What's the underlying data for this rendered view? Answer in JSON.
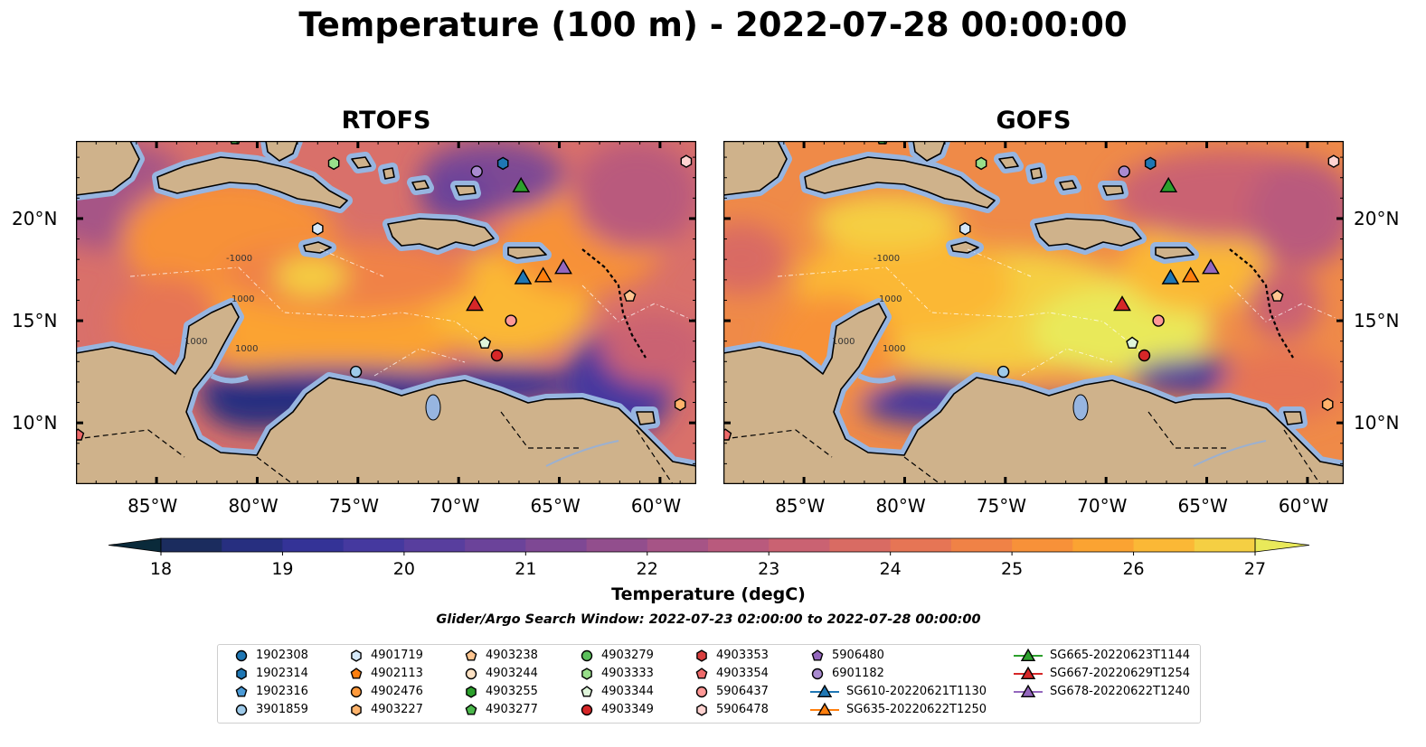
{
  "title": "Temperature (100 m) - 2022-07-28 00:00:00",
  "panels": [
    {
      "title": "RTOFS",
      "palette": "rtofs"
    },
    {
      "title": "GOFS",
      "palette": "gofs"
    }
  ],
  "axes": {
    "lon_ticks": [
      "85°W",
      "80°W",
      "75°W",
      "70°W",
      "65°W",
      "60°W"
    ],
    "lat_ticks": [
      "20°N",
      "15°N",
      "10°N"
    ],
    "bathymetry_labels": [
      "1000",
      "1000",
      "-1000",
      "1000"
    ]
  },
  "colorbar": {
    "label": "Temperature (degC)",
    "ticks": [
      "18",
      "19",
      "20",
      "21",
      "22",
      "23",
      "24",
      "25",
      "26",
      "27"
    ],
    "min": 18,
    "max": 27,
    "step": 0.5,
    "colors": [
      "#0a2a3a",
      "#1b2c5e",
      "#272f80",
      "#343397",
      "#45399f",
      "#583e9e",
      "#6b439a",
      "#7e4894",
      "#924e8d",
      "#a65486",
      "#b95a7d",
      "#ca6272",
      "#d96b63",
      "#e67555",
      "#f08246",
      "#f79139",
      "#fba332",
      "#fbb836",
      "#f5cf43",
      "#e9e95a"
    ]
  },
  "subtitle": "Glider/Argo Search Window: 2022-07-23 02:00:00 to 2022-07-28 00:00:00",
  "legend": {
    "items": [
      {
        "label": "1902308",
        "marker": "circle",
        "color": "#1f77b4"
      },
      {
        "label": "1902314",
        "marker": "hexagon",
        "color": "#1f77b4"
      },
      {
        "label": "1902316",
        "marker": "pentagon",
        "color": "#4a9ad6"
      },
      {
        "label": "3901859",
        "marker": "circle",
        "color": "#9ecae9"
      },
      {
        "label": "4901719",
        "marker": "hexagon",
        "color": "#d5e8f8"
      },
      {
        "label": "4902113",
        "marker": "pentagon",
        "color": "#ff7f0e"
      },
      {
        "label": "4902476",
        "marker": "circle",
        "color": "#ff9a3c"
      },
      {
        "label": "4903227",
        "marker": "hexagon",
        "color": "#ffb36b"
      },
      {
        "label": "4903238",
        "marker": "pentagon",
        "color": "#ffc590"
      },
      {
        "label": "4903244",
        "marker": "circle",
        "color": "#ffe2c4"
      },
      {
        "label": "4903255",
        "marker": "hexagon",
        "color": "#2ca02c"
      },
      {
        "label": "4903277",
        "marker": "pentagon",
        "color": "#4cb84c"
      },
      {
        "label": "4903279",
        "marker": "circle",
        "color": "#5cc05c"
      },
      {
        "label": "4903333",
        "marker": "hexagon",
        "color": "#98df8a"
      },
      {
        "label": "4903344",
        "marker": "pentagon",
        "color": "#dff5da"
      },
      {
        "label": "4903349",
        "marker": "circle",
        "color": "#d62728"
      },
      {
        "label": "4903353",
        "marker": "hexagon",
        "color": "#d93f3f"
      },
      {
        "label": "4903354",
        "marker": "pentagon",
        "color": "#ee6a6a"
      },
      {
        "label": "5906437",
        "marker": "circle",
        "color": "#ff9896"
      },
      {
        "label": "5906478",
        "marker": "hexagon",
        "color": "#ffd3d1"
      },
      {
        "label": "5906480",
        "marker": "pentagon",
        "color": "#9467bd"
      },
      {
        "label": "6901182",
        "marker": "circle",
        "color": "#a98ad0"
      },
      {
        "label": "SG610-20220621T1130",
        "marker": "triangle",
        "color": "#1f77b4"
      },
      {
        "label": "SG635-20220622T1250",
        "marker": "triangle",
        "color": "#ff7f0e"
      },
      {
        "label": "SG665-20220623T1144",
        "marker": "triangle",
        "color": "#2ca02c"
      },
      {
        "label": "SG667-20220629T1254",
        "marker": "triangle",
        "color": "#d62728"
      },
      {
        "label": "SG678-20220622T1240",
        "marker": "triangle",
        "color": "#9467bd"
      }
    ]
  },
  "observations": [
    {
      "id": "4903333",
      "lon": -76.2,
      "lat": 22.7
    },
    {
      "id": "6901182",
      "lon": -69.1,
      "lat": 22.3
    },
    {
      "id": "1902314",
      "lon": -67.8,
      "lat": 22.7
    },
    {
      "id": "SG665-20220623T1144",
      "lon": -66.9,
      "lat": 21.6
    },
    {
      "id": "5906478",
      "lon": -58.7,
      "lat": 22.8
    },
    {
      "id": "4901719",
      "lon": -77.0,
      "lat": 19.5
    },
    {
      "id": "SG610-20220621T1130",
      "lon": -66.8,
      "lat": 17.1
    },
    {
      "id": "SG635-20220622T1250",
      "lon": -65.8,
      "lat": 17.2
    },
    {
      "id": "SG678-20220622T1240",
      "lon": -64.8,
      "lat": 17.6
    },
    {
      "id": "SG667-20220629T1254",
      "lon": -69.2,
      "lat": 15.8
    },
    {
      "id": "5906437",
      "lon": -67.4,
      "lat": 15.0
    },
    {
      "id": "4903344",
      "lon": -68.7,
      "lat": 13.9
    },
    {
      "id": "4903349",
      "lon": -68.1,
      "lat": 13.3
    },
    {
      "id": "3901859",
      "lon": -75.1,
      "lat": 12.5
    },
    {
      "id": "4903227",
      "lon": -59.0,
      "lat": 10.9
    },
    {
      "id": "4903354",
      "lon": -88.9,
      "lat": 9.4
    },
    {
      "id": "4903277",
      "lon": -81.1,
      "lat": 23.9
    },
    {
      "id": "4903238",
      "lon": -61.5,
      "lat": 16.2
    }
  ]
}
